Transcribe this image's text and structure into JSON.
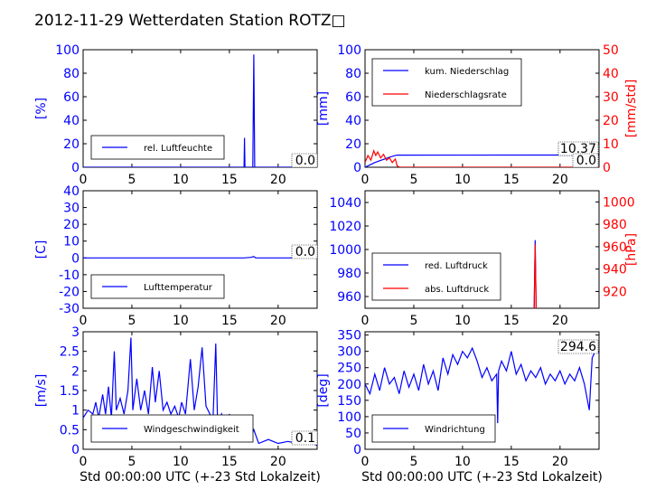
{
  "title": "2012-11-29 Wetterdaten Station ROTZ□",
  "colors": {
    "left": "#0000ff",
    "right": "#ff0000",
    "text": "#000000"
  },
  "chart_data": [
    {
      "id": "humidity",
      "type": "line",
      "xlim": [
        0,
        24
      ],
      "ylim": [
        0,
        100
      ],
      "xticks": [
        0,
        5,
        10,
        15,
        20
      ],
      "yticks": [
        0,
        20,
        40,
        60,
        80,
        100
      ],
      "ylabel": "[%]",
      "xlabel": "",
      "legend": {
        "placement": "lower-left",
        "entries": [
          "rel. Luftfeuchte"
        ]
      },
      "annotations": [
        "0.0"
      ],
      "series": [
        {
          "name": "rel. Luftfeuchte",
          "color": "#0000ff",
          "points": [
            [
              0,
              0
            ],
            [
              16.3,
              0
            ],
            [
              16.5,
              0
            ],
            [
              16.55,
              25
            ],
            [
              16.6,
              0
            ],
            [
              17.4,
              0
            ],
            [
              17.5,
              96
            ],
            [
              17.6,
              0
            ],
            [
              24,
              0
            ]
          ]
        }
      ]
    },
    {
      "id": "precip",
      "type": "line",
      "xlim": [
        0,
        24
      ],
      "ylim": [
        0,
        100
      ],
      "ylim_right": [
        0,
        50
      ],
      "xticks": [
        0,
        5,
        10,
        15,
        20
      ],
      "yticks": [
        0,
        20,
        40,
        60,
        80,
        100
      ],
      "yticks_right": [
        0,
        10,
        20,
        30,
        40,
        50
      ],
      "ylabel": "[mm]",
      "ylabel_right": "[mm/std]",
      "xlabel": "",
      "legend": {
        "placement": "upper-left",
        "entries": [
          "kum. Niederschlag",
          "Niederschlagsrate"
        ]
      },
      "annotations": [
        "10.37",
        "0.0"
      ],
      "series": [
        {
          "name": "kum. Niederschlag",
          "color": "#0000ff",
          "axis": "left",
          "points": [
            [
              0,
              0
            ],
            [
              0.5,
              2
            ],
            [
              1,
              4
            ],
            [
              1.5,
              5.5
            ],
            [
              2,
              7
            ],
            [
              2.5,
              8.5
            ],
            [
              3,
              9.8
            ],
            [
              3.3,
              10.3
            ],
            [
              24,
              10.37
            ]
          ]
        },
        {
          "name": "Niederschlagsrate",
          "color": "#ff0000",
          "axis": "right",
          "points": [
            [
              0,
              2
            ],
            [
              0.3,
              5
            ],
            [
              0.6,
              3
            ],
            [
              0.9,
              7
            ],
            [
              1.1,
              5
            ],
            [
              1.3,
              6.5
            ],
            [
              1.6,
              4
            ],
            [
              1.9,
              5.5
            ],
            [
              2.2,
              3
            ],
            [
              2.5,
              4
            ],
            [
              2.8,
              2
            ],
            [
              3.1,
              3.5
            ],
            [
              3.3,
              0.5
            ],
            [
              3.6,
              0
            ],
            [
              24,
              0
            ]
          ]
        }
      ]
    },
    {
      "id": "temperature",
      "type": "line",
      "xlim": [
        0,
        24
      ],
      "ylim": [
        -30,
        40
      ],
      "xticks": [
        0,
        5,
        10,
        15,
        20
      ],
      "yticks": [
        -30,
        -20,
        -10,
        0,
        10,
        20,
        30,
        40
      ],
      "ylabel": "[C]",
      "xlabel": "",
      "legend": {
        "placement": "lower-left",
        "entries": [
          "Lufttemperatur"
        ]
      },
      "annotations": [
        "0.0"
      ],
      "series": [
        {
          "name": "Lufttemperatur",
          "color": "#0000ff",
          "points": [
            [
              0,
              0
            ],
            [
              16.5,
              0
            ],
            [
              17.2,
              0.3
            ],
            [
              17.5,
              0.8
            ],
            [
              17.7,
              0
            ],
            [
              24,
              0
            ]
          ]
        }
      ]
    },
    {
      "id": "pressure",
      "type": "line",
      "xlim": [
        0,
        24
      ],
      "ylim": [
        950,
        1050
      ],
      "ylim_right": [
        905,
        1010
      ],
      "xticks": [
        0,
        5,
        10,
        15,
        20
      ],
      "yticks": [
        960,
        980,
        1000,
        1020,
        1040
      ],
      "yticks_right": [
        920,
        940,
        960,
        980,
        1000
      ],
      "ylabel": "",
      "ylabel_right": "[hPa]",
      "xlabel": "",
      "legend": {
        "placement": "lower-left",
        "entries": [
          "red. Luftdruck",
          "abs. Luftdruck"
        ]
      },
      "annotations": [],
      "series": [
        {
          "name": "red. Luftdruck",
          "color": "#0000ff",
          "axis": "left",
          "points": [
            [
              17.35,
              950
            ],
            [
              17.45,
              1008
            ],
            [
              17.55,
              950
            ]
          ]
        },
        {
          "name": "abs. Luftdruck",
          "color": "#ff0000",
          "axis": "right",
          "points": [
            [
              17.35,
              905
            ],
            [
              17.45,
              962
            ],
            [
              17.55,
              905
            ]
          ]
        }
      ]
    },
    {
      "id": "windspeed",
      "type": "line",
      "xlim": [
        0,
        24
      ],
      "ylim": [
        0,
        3.0
      ],
      "xticks": [
        0,
        5,
        10,
        15,
        20
      ],
      "yticks": [
        0.0,
        0.5,
        1.0,
        1.5,
        2.0,
        2.5,
        3.0
      ],
      "ylabel": "[m/s]",
      "xlabel": "Std 00:00:00 UTC (+-23 Std Lokalzeit)",
      "legend": {
        "placement": "lower-center",
        "entries": [
          "Windgeschwindigkeit"
        ]
      },
      "annotations": [
        "0.1"
      ],
      "series": [
        {
          "name": "Windgeschwindigkeit",
          "color": "#0000ff",
          "points": [
            [
              0,
              0.8
            ],
            [
              0.5,
              1.0
            ],
            [
              1,
              0.9
            ],
            [
              1.3,
              1.2
            ],
            [
              1.6,
              0.8
            ],
            [
              2,
              1.4
            ],
            [
              2.3,
              0.9
            ],
            [
              2.6,
              1.6
            ],
            [
              2.9,
              0.8
            ],
            [
              3.2,
              2.5
            ],
            [
              3.4,
              1.0
            ],
            [
              3.8,
              1.3
            ],
            [
              4.2,
              0.9
            ],
            [
              4.6,
              1.5
            ],
            [
              4.9,
              2.85
            ],
            [
              5.1,
              1.0
            ],
            [
              5.5,
              1.8
            ],
            [
              5.9,
              1.0
            ],
            [
              6.3,
              1.5
            ],
            [
              6.7,
              0.9
            ],
            [
              7.1,
              2.1
            ],
            [
              7.4,
              1.2
            ],
            [
              7.8,
              2.0
            ],
            [
              8.2,
              1.0
            ],
            [
              8.6,
              1.2
            ],
            [
              9.0,
              0.9
            ],
            [
              9.4,
              1.1
            ],
            [
              9.8,
              0.8
            ],
            [
              10.1,
              1.2
            ],
            [
              10.5,
              0.9
            ],
            [
              11.0,
              2.3
            ],
            [
              11.4,
              1.0
            ],
            [
              11.8,
              1.6
            ],
            [
              12.2,
              2.6
            ],
            [
              12.6,
              1.1
            ],
            [
              13.0,
              0.9
            ],
            [
              13.3,
              0.6
            ],
            [
              13.6,
              2.7
            ],
            [
              13.8,
              0.6
            ],
            [
              14.2,
              0.9
            ],
            [
              14.6,
              0.5
            ],
            [
              15.0,
              0.9
            ],
            [
              15.4,
              0.4
            ],
            [
              15.8,
              0.6
            ],
            [
              16.2,
              0.3
            ],
            [
              16.6,
              0.4
            ],
            [
              17.0,
              0.2
            ],
            [
              17.5,
              0.5
            ],
            [
              18.0,
              0.15
            ],
            [
              19.0,
              0.25
            ],
            [
              20.0,
              0.15
            ],
            [
              21.0,
              0.2
            ],
            [
              22.0,
              0.15
            ],
            [
              23.0,
              0.2
            ],
            [
              24.0,
              0.1
            ]
          ]
        }
      ]
    },
    {
      "id": "winddir",
      "type": "line",
      "xlim": [
        0,
        24
      ],
      "ylim": [
        0,
        360
      ],
      "xticks": [
        0,
        5,
        10,
        15,
        20
      ],
      "yticks": [
        0,
        50,
        100,
        150,
        200,
        250,
        300,
        350
      ],
      "ylabel": "[deg]",
      "xlabel": "Std 00:00:00 UTC (+-23 Std Lokalzeit)",
      "legend": {
        "placement": "lower-left",
        "entries": [
          "Windrichtung"
        ]
      },
      "annotations": [
        "294.6"
      ],
      "series": [
        {
          "name": "Windrichtung",
          "color": "#0000ff",
          "points": [
            [
              0,
              200
            ],
            [
              0.5,
              170
            ],
            [
              1,
              230
            ],
            [
              1.5,
              180
            ],
            [
              2,
              250
            ],
            [
              2.5,
              200
            ],
            [
              3,
              220
            ],
            [
              3.5,
              170
            ],
            [
              4,
              240
            ],
            [
              4.5,
              190
            ],
            [
              5,
              230
            ],
            [
              5.5,
              180
            ],
            [
              6,
              260
            ],
            [
              6.5,
              200
            ],
            [
              7,
              240
            ],
            [
              7.5,
              180
            ],
            [
              8,
              280
            ],
            [
              8.5,
              230
            ],
            [
              9,
              290
            ],
            [
              9.5,
              260
            ],
            [
              10,
              300
            ],
            [
              10.5,
              280
            ],
            [
              11,
              310
            ],
            [
              11.5,
              270
            ],
            [
              12,
              220
            ],
            [
              12.5,
              250
            ],
            [
              13,
              210
            ],
            [
              13.5,
              230
            ],
            [
              13.6,
              80
            ],
            [
              13.7,
              240
            ],
            [
              14,
              270
            ],
            [
              14.5,
              240
            ],
            [
              15,
              300
            ],
            [
              15.5,
              230
            ],
            [
              16,
              260
            ],
            [
              16.5,
              210
            ],
            [
              17,
              240
            ],
            [
              17.5,
              220
            ],
            [
              18,
              250
            ],
            [
              18.5,
              200
            ],
            [
              19,
              230
            ],
            [
              19.5,
              210
            ],
            [
              20,
              240
            ],
            [
              20.5,
              200
            ],
            [
              21,
              230
            ],
            [
              21.5,
              210
            ],
            [
              22,
              250
            ],
            [
              22.5,
              200
            ],
            [
              23,
              120
            ],
            [
              23.3,
              280
            ],
            [
              23.6,
              300
            ],
            [
              24,
              295
            ]
          ]
        }
      ]
    }
  ]
}
